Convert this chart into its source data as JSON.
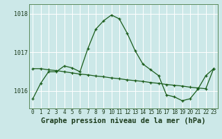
{
  "title": "Graphe pression niveau de la mer (hPa)",
  "bg_color": "#cce8e8",
  "grid_color": "#ffffff",
  "line_color": "#1a5c1a",
  "line1": [
    1015.8,
    1016.2,
    1016.5,
    1016.5,
    1016.65,
    1016.6,
    1016.5,
    1017.1,
    1017.6,
    1017.82,
    1017.97,
    1017.87,
    1017.5,
    1017.05,
    1016.7,
    1016.55,
    1016.4,
    1015.9,
    1015.85,
    1015.75,
    1015.8,
    1016.05,
    1016.4,
    1016.58
  ],
  "line2": [
    1016.58,
    1016.58,
    1016.55,
    1016.53,
    1016.5,
    1016.47,
    1016.44,
    1016.42,
    1016.39,
    1016.37,
    1016.34,
    1016.32,
    1016.29,
    1016.27,
    1016.25,
    1016.22,
    1016.2,
    1016.17,
    1016.15,
    1016.13,
    1016.1,
    1016.08,
    1016.06,
    1016.58
  ],
  "hours": [
    0,
    1,
    2,
    3,
    4,
    5,
    6,
    7,
    8,
    9,
    10,
    11,
    12,
    13,
    14,
    15,
    16,
    17,
    18,
    19,
    20,
    21,
    22,
    23
  ],
  "xlim": [
    -0.5,
    23.5
  ],
  "ylim": [
    1015.55,
    1018.25
  ],
  "yticks": [
    1016,
    1017,
    1018
  ],
  "title_fontsize": 7.5,
  "tick_fontsize": 5.5
}
